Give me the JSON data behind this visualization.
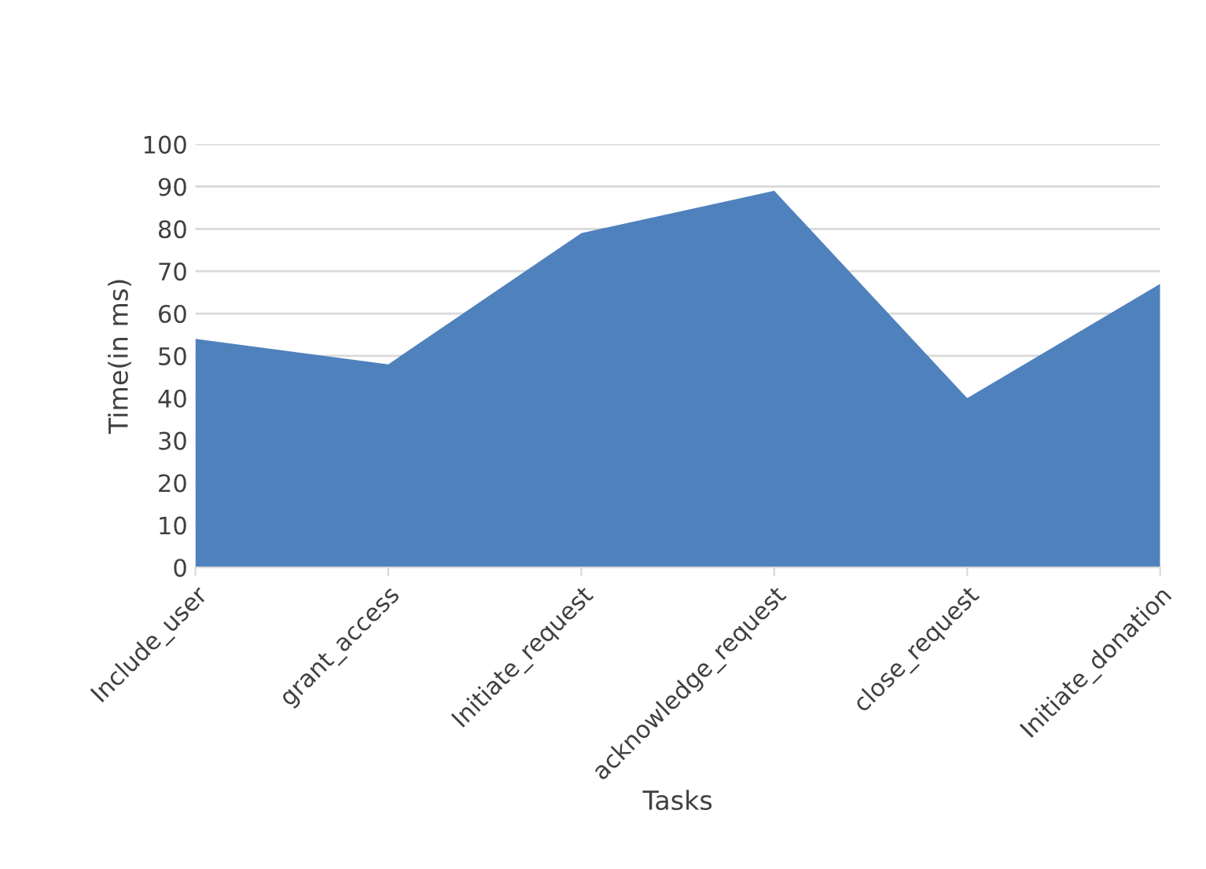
{
  "chart_data": {
    "type": "area",
    "xlabel": "Tasks",
    "ylabel": "Time(in ms)",
    "categories": [
      "Include_user",
      "grant_access",
      "Initiate_request",
      "acknowledge_request",
      "close_request",
      "Initiate_donation"
    ],
    "series": [
      {
        "color": "#4f81bd",
        "values": [
          54,
          48,
          79,
          89,
          40,
          67
        ]
      }
    ],
    "ylim": [
      0,
      100
    ],
    "yticks": [
      0,
      10,
      20,
      30,
      40,
      50,
      60,
      70,
      80,
      90,
      100
    ],
    "grid": "y",
    "legend": false
  }
}
